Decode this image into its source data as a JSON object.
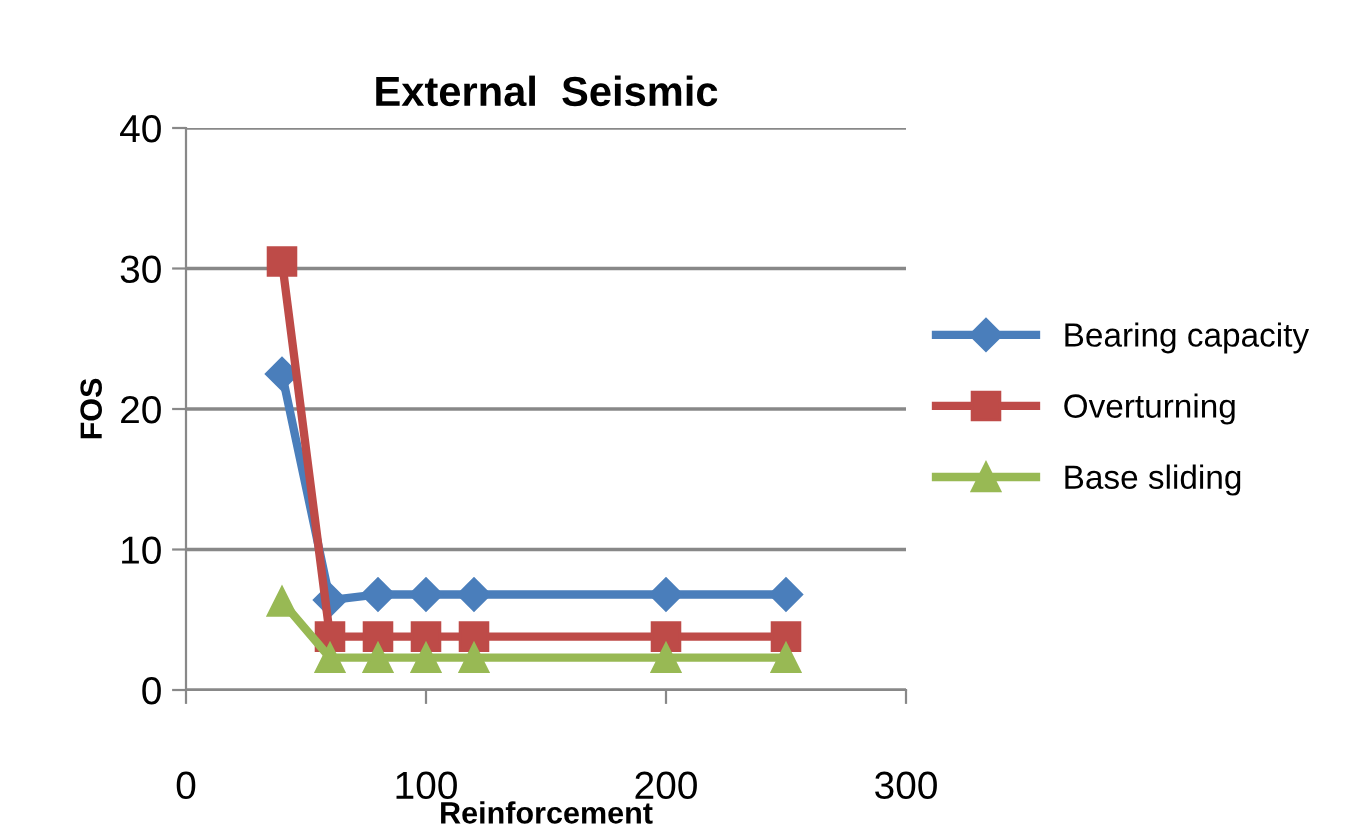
{
  "chart_data": {
    "type": "line",
    "title": "External  Seismic",
    "xlabel": "Reinforcement",
    "ylabel": "FOS",
    "x": [
      40,
      60,
      80,
      100,
      120,
      200,
      250
    ],
    "series": [
      {
        "name": "Bearing capacity",
        "color": "#4a7ebb",
        "marker": "diamond",
        "values": [
          22.5,
          6.4,
          6.8,
          6.8,
          6.8,
          6.8,
          6.8
        ]
      },
      {
        "name": "Overturning",
        "color": "#be4b48",
        "marker": "square",
        "values": [
          30.5,
          3.8,
          3.8,
          3.8,
          3.8,
          3.8,
          3.8
        ]
      },
      {
        "name": "Base sliding",
        "color": "#98b954",
        "marker": "triangle",
        "values": [
          6.3,
          2.3,
          2.3,
          2.3,
          2.3,
          2.3,
          2.3
        ]
      }
    ],
    "xlim": [
      0,
      300
    ],
    "xticks": [
      0,
      100,
      200,
      300
    ],
    "ylim": [
      0,
      40
    ],
    "yticks": [
      0,
      10,
      20,
      30,
      40
    ],
    "grid": "y",
    "legend": "right",
    "line_style": "solid"
  }
}
